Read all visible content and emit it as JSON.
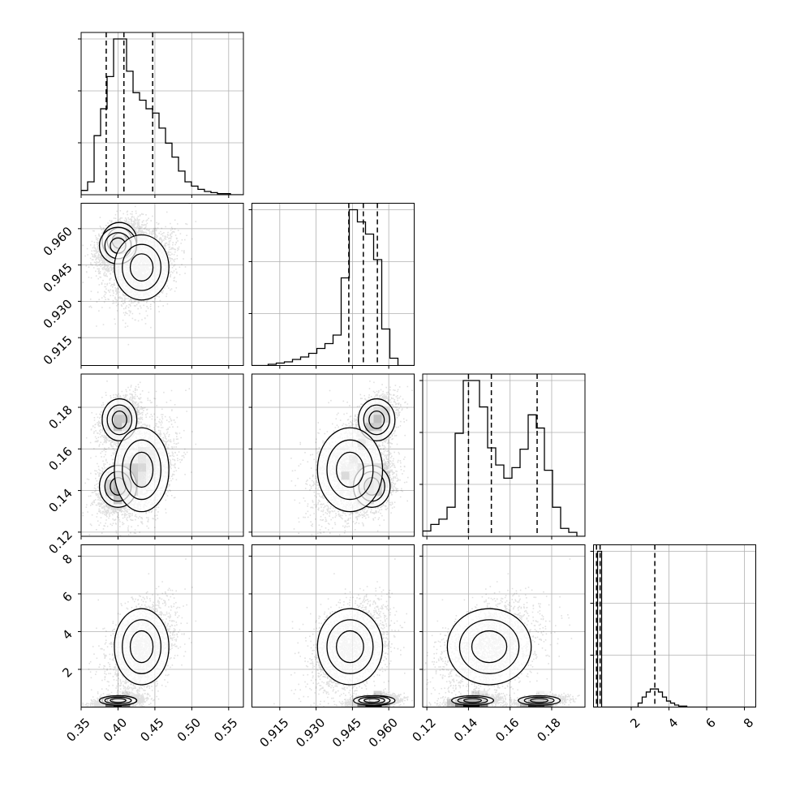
{
  "chart_data": {
    "type": "corner",
    "parameters": 4,
    "colors": {
      "hist": "#000000",
      "contour": "#000000",
      "grid": "#b0b0b0",
      "points": "#000000"
    },
    "grid": true,
    "ranges": [
      [
        0.35,
        0.57
      ],
      [
        0.9035,
        0.9705
      ],
      [
        0.118,
        0.196
      ],
      [
        0.0,
        8.6
      ]
    ],
    "tick_labels": [
      [
        "0.35",
        "0.40",
        "0.45",
        "0.50",
        "0.55"
      ],
      [
        "0.915",
        "0.930",
        "0.945",
        "0.960"
      ],
      [
        "0.12",
        "0.14",
        "0.16",
        "0.18"
      ],
      [
        "2",
        "4",
        "6",
        "8"
      ]
    ],
    "ticks": [
      [
        0.35,
        0.4,
        0.45,
        0.5,
        0.55
      ],
      [
        0.915,
        0.93,
        0.945,
        0.96
      ],
      [
        0.12,
        0.14,
        0.16,
        0.18
      ],
      [
        2,
        4,
        6,
        8
      ]
    ],
    "quantiles": [
      [
        0.384,
        0.408,
        0.447
      ],
      [
        0.9435,
        0.9495,
        0.9553
      ],
      [
        0.14,
        0.151,
        0.173
      ],
      [
        0.16,
        0.35,
        3.25
      ]
    ],
    "histograms": [
      {
        "edges_from": 0.35,
        "edges_to": 0.57,
        "counts": [
          4,
          12,
          55,
          80,
          110,
          145,
          145,
          115,
          95,
          88,
          80,
          76,
          62,
          48,
          35,
          22,
          12,
          8,
          5,
          3,
          2,
          1,
          1,
          0,
          0
        ]
      },
      {
        "edges_from": 0.9035,
        "edges_to": 0.9705,
        "counts": [
          0,
          0,
          1,
          2,
          3,
          5,
          7,
          10,
          14,
          18,
          25,
          72,
          128,
          118,
          108,
          87,
          30,
          6,
          0,
          0
        ]
      },
      {
        "edges_from": 0.118,
        "edges_to": 0.196,
        "counts": [
          4,
          9,
          13,
          22,
          78,
          118,
          118,
          98,
          67,
          54,
          44,
          52,
          66,
          92,
          82,
          50,
          22,
          6,
          3,
          0
        ]
      },
      {
        "edges_from": 0.0,
        "edges_to": 8.6,
        "counts": [
          0,
          155,
          0,
          0,
          0,
          0,
          0,
          0,
          0,
          0,
          0,
          4,
          10,
          15,
          18,
          18,
          15,
          10,
          6,
          4,
          2,
          1,
          1,
          0,
          0,
          0,
          0,
          0,
          0,
          0,
          0,
          0,
          0,
          0,
          0,
          0,
          0,
          0,
          0,
          0
        ]
      }
    ],
    "clusters": [
      {
        "mean": [
          0.402,
          0.955,
          0.174,
          0.35
        ],
        "sd": [
          0.014,
          0.0045,
          0.006,
          0.15
        ],
        "weight": 0.26
      },
      {
        "mean": [
          0.4,
          0.953,
          0.142,
          0.35
        ],
        "sd": [
          0.015,
          0.0045,
          0.006,
          0.15
        ],
        "weight": 0.31
      },
      {
        "mean": [
          0.432,
          0.944,
          0.15,
          3.2
        ],
        "sd": [
          0.022,
          0.008,
          0.012,
          1.2
        ],
        "weight": 0.43
      }
    ]
  }
}
